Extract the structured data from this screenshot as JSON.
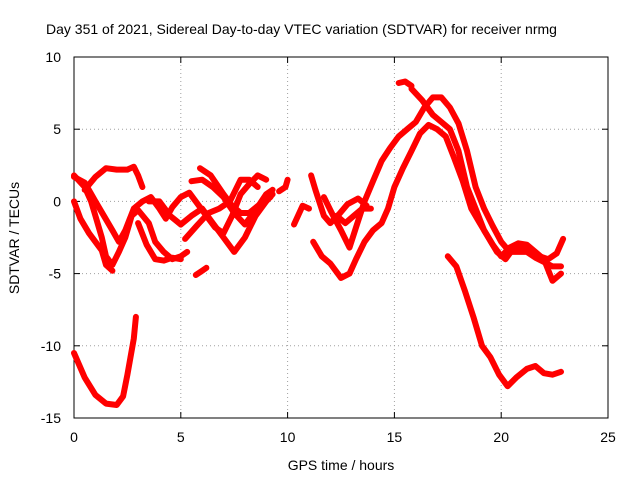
{
  "chart_data": {
    "type": "line",
    "title": "Day 351 of 2021, Sidereal Day-to-day VTEC variation (SDTVAR) for receiver nrmg",
    "xlabel": "GPS time / hours",
    "ylabel": "SDTVAR / TECUs",
    "xlim": [
      0,
      25
    ],
    "ylim": [
      -15,
      10
    ],
    "xticks": [
      0,
      5,
      10,
      15,
      20,
      25
    ],
    "yticks": [
      -15,
      -10,
      -5,
      0,
      5,
      10
    ],
    "xtick_labels": [
      "0",
      "5",
      "10",
      "15",
      "20",
      "25"
    ],
    "ytick_labels": [
      "-15",
      "-10",
      "-5",
      "0",
      "5",
      "10"
    ],
    "grid": true,
    "legend": "none",
    "color": "#ff0000",
    "series": [
      {
        "name": "trace-1",
        "points": [
          [
            0,
            -10.5
          ],
          [
            0.5,
            -12.2
          ],
          [
            1,
            -13.4
          ],
          [
            1.5,
            -14
          ],
          [
            2,
            -14.1
          ],
          [
            2.3,
            -13.5
          ],
          [
            2.5,
            -12
          ],
          [
            2.8,
            -9.5
          ],
          [
            2.9,
            -8
          ]
        ]
      },
      {
        "name": "trace-2",
        "points": [
          [
            0,
            1.8
          ],
          [
            0.5,
            1
          ],
          [
            0.8,
            0
          ],
          [
            1,
            -1
          ],
          [
            1.3,
            -2.5
          ],
          [
            1.5,
            -3.8
          ],
          [
            1.8,
            -4.4
          ],
          [
            2.1,
            -3.5
          ],
          [
            2.4,
            -2.5
          ],
          [
            2.7,
            -1
          ],
          [
            3,
            -0.6
          ],
          [
            3.5,
            -1.5
          ],
          [
            3.8,
            -2.8
          ],
          [
            4.2,
            -3.5
          ],
          [
            4.6,
            -4
          ],
          [
            5,
            -3.8
          ],
          [
            5.3,
            -3.5
          ]
        ]
      },
      {
        "name": "trace-3",
        "points": [
          [
            0.5,
            0.8
          ],
          [
            1,
            1.7
          ],
          [
            1.5,
            2.3
          ],
          [
            2,
            2.2
          ],
          [
            2.5,
            2.2
          ],
          [
            2.8,
            2.4
          ],
          [
            3,
            1.8
          ],
          [
            3.2,
            1
          ]
        ]
      },
      {
        "name": "trace-4",
        "points": [
          [
            0,
            1.7
          ],
          [
            0.5,
            1.3
          ],
          [
            1,
            0
          ],
          [
            1.4,
            -1
          ],
          [
            1.8,
            -2
          ],
          [
            2.1,
            -2.8
          ],
          [
            2.4,
            -2
          ],
          [
            2.8,
            -0.5
          ],
          [
            3.2,
            0
          ],
          [
            3.6,
            0.3
          ],
          [
            4,
            -0.5
          ],
          [
            4.3,
            -1.2
          ],
          [
            4.6,
            -0.4
          ],
          [
            5,
            0.3
          ],
          [
            5.4,
            0.6
          ],
          [
            5.8,
            -0.2
          ],
          [
            6.2,
            -1
          ],
          [
            6.6,
            -1.8
          ],
          [
            7,
            -2.2
          ],
          [
            7.4,
            -1
          ],
          [
            7.8,
            0.5
          ],
          [
            8.2,
            1.2
          ],
          [
            8.6,
            1.8
          ],
          [
            9,
            1.5
          ]
        ]
      },
      {
        "name": "trace-5",
        "points": [
          [
            0,
            0
          ],
          [
            0.3,
            -1.2
          ],
          [
            0.7,
            -2.2
          ],
          [
            1,
            -2.8
          ],
          [
            1.3,
            -3.4
          ],
          [
            1.5,
            -4.4
          ],
          [
            1.8,
            -4.8
          ]
        ]
      },
      {
        "name": "trace-6",
        "points": [
          [
            3,
            -1.5
          ],
          [
            3.4,
            -3
          ],
          [
            3.8,
            -4
          ],
          [
            4.2,
            -4.1
          ],
          [
            4.6,
            -3.9
          ],
          [
            5,
            -4
          ]
        ]
      },
      {
        "name": "trace-7",
        "points": [
          [
            3.5,
            0
          ],
          [
            4,
            0
          ],
          [
            4.5,
            -1
          ],
          [
            5,
            -1.6
          ],
          [
            5.5,
            -1
          ],
          [
            6,
            -0.5
          ],
          [
            6.5,
            -1.5
          ],
          [
            7,
            -2.5
          ],
          [
            7.5,
            -3.5
          ],
          [
            8,
            -2.5
          ],
          [
            8.5,
            -1
          ],
          [
            9,
            0
          ],
          [
            9.3,
            0.5
          ]
        ]
      },
      {
        "name": "trace-8",
        "points": [
          [
            5.2,
            -2.6
          ],
          [
            5.8,
            -1.6
          ],
          [
            6.3,
            -0.8
          ],
          [
            6.8,
            -0.5
          ],
          [
            7.3,
            0
          ],
          [
            7.8,
            1.5
          ],
          [
            8.2,
            1.5
          ],
          [
            8.6,
            1
          ]
        ]
      },
      {
        "name": "trace-9",
        "points": [
          [
            5.5,
            1.4
          ],
          [
            6,
            1.5
          ],
          [
            6.5,
            1
          ],
          [
            7,
            0.3
          ],
          [
            7.5,
            -0.8
          ],
          [
            8,
            -1.6
          ],
          [
            8.5,
            -0.6
          ],
          [
            9,
            0.5
          ],
          [
            9.3,
            0.8
          ]
        ]
      },
      {
        "name": "trace-10",
        "points": [
          [
            5.7,
            -5.1
          ],
          [
            6,
            -4.8
          ],
          [
            6.2,
            -4.6
          ]
        ]
      },
      {
        "name": "trace-11",
        "points": [
          [
            5.9,
            2.3
          ],
          [
            6.4,
            1.8
          ],
          [
            7,
            0.5
          ],
          [
            7.4,
            -0.3
          ],
          [
            7.8,
            -0.8
          ],
          [
            8.2,
            -0.8
          ],
          [
            8.7,
            -0.2
          ],
          [
            9.2,
            0.3
          ]
        ]
      },
      {
        "name": "trace-12",
        "points": [
          [
            9.6,
            0.7
          ],
          [
            9.9,
            1
          ],
          [
            10,
            1.5
          ]
        ]
      },
      {
        "name": "trace-13",
        "points": [
          [
            10.3,
            -1.6
          ],
          [
            10.7,
            -0.3
          ],
          [
            11,
            -0.5
          ]
        ]
      },
      {
        "name": "trace-14",
        "points": [
          [
            11.1,
            1.8
          ],
          [
            11.3,
            0.8
          ],
          [
            11.7,
            -1
          ],
          [
            12,
            -1.5
          ],
          [
            12.4,
            -0.9
          ],
          [
            12.8,
            -0.2
          ],
          [
            13.3,
            0.2
          ],
          [
            13.7,
            -0.3
          ]
        ]
      },
      {
        "name": "trace-15",
        "points": [
          [
            11.2,
            -2.8
          ],
          [
            11.6,
            -3.8
          ],
          [
            12,
            -4.3
          ],
          [
            12.5,
            -5.3
          ],
          [
            12.9,
            -5
          ],
          [
            13.2,
            -4
          ],
          [
            13.6,
            -2.8
          ],
          [
            14,
            -2
          ],
          [
            14.4,
            -1.5
          ],
          [
            14.7,
            -0.5
          ],
          [
            15,
            1
          ],
          [
            15.4,
            2.3
          ],
          [
            15.8,
            3.5
          ],
          [
            16.2,
            4.7
          ],
          [
            16.6,
            5.3
          ],
          [
            17,
            5
          ],
          [
            17.4,
            4.5
          ],
          [
            17.8,
            3
          ],
          [
            18.2,
            1.4
          ],
          [
            18.6,
            -0.5
          ],
          [
            19,
            -1.5
          ],
          [
            19.4,
            -2.5
          ],
          [
            19.8,
            -3.5
          ],
          [
            20.2,
            -4
          ],
          [
            20.6,
            -3.2
          ],
          [
            21,
            -3.2
          ],
          [
            21.4,
            -3.5
          ],
          [
            21.8,
            -3.8
          ],
          [
            22.2,
            -4
          ],
          [
            22.6,
            -3.6
          ],
          [
            22.9,
            -2.6
          ]
        ]
      },
      {
        "name": "trace-16",
        "points": [
          [
            11.7,
            0.3
          ],
          [
            12.1,
            -0.9
          ],
          [
            12.5,
            -2
          ],
          [
            12.9,
            -3.2
          ],
          [
            13.2,
            -1.8
          ],
          [
            13.6,
            0
          ],
          [
            14,
            1.4
          ],
          [
            14.4,
            2.8
          ],
          [
            14.8,
            3.7
          ],
          [
            15.2,
            4.5
          ],
          [
            15.6,
            5
          ],
          [
            16,
            5.5
          ],
          [
            16.4,
            6.5
          ],
          [
            16.8,
            7.2
          ],
          [
            17.2,
            7.2
          ],
          [
            17.6,
            6.5
          ],
          [
            18,
            5.4
          ],
          [
            18.4,
            3.5
          ],
          [
            18.8,
            1
          ],
          [
            19.2,
            -0.5
          ],
          [
            19.6,
            -1.7
          ],
          [
            20,
            -2.8
          ],
          [
            20.4,
            -3.5
          ],
          [
            20.8,
            -3.5
          ],
          [
            21.2,
            -3.5
          ],
          [
            21.6,
            -3.9
          ],
          [
            22,
            -4.2
          ],
          [
            22.4,
            -4.5
          ],
          [
            22.8,
            -4.5
          ]
        ]
      },
      {
        "name": "trace-17",
        "points": [
          [
            12.3,
            -1
          ],
          [
            12.7,
            -1.5
          ],
          [
            13.1,
            -1
          ],
          [
            13.5,
            -0.5
          ],
          [
            13.9,
            -0.5
          ]
        ]
      },
      {
        "name": "trace-18",
        "points": [
          [
            15.2,
            8.2
          ],
          [
            15.5,
            8.3
          ],
          [
            15.8,
            8
          ]
        ]
      },
      {
        "name": "trace-19",
        "points": [
          [
            15.8,
            7.8
          ],
          [
            16.3,
            7
          ],
          [
            16.8,
            6
          ],
          [
            17.2,
            5.5
          ],
          [
            17.6,
            5
          ],
          [
            18,
            3.5
          ],
          [
            18.4,
            1
          ],
          [
            18.8,
            -0.5
          ],
          [
            19.2,
            -2
          ],
          [
            19.6,
            -3
          ],
          [
            20,
            -3.8
          ],
          [
            20.4,
            -3.2
          ],
          [
            20.8,
            -2.9
          ],
          [
            21.2,
            -3
          ],
          [
            21.6,
            -3.5
          ],
          [
            22,
            -4
          ],
          [
            22.4,
            -5.5
          ],
          [
            22.8,
            -5
          ]
        ]
      },
      {
        "name": "trace-20",
        "points": [
          [
            17.5,
            -3.8
          ],
          [
            17.9,
            -4.5
          ],
          [
            18.3,
            -6.2
          ],
          [
            18.7,
            -8
          ],
          [
            19.1,
            -10
          ],
          [
            19.5,
            -10.8
          ],
          [
            19.9,
            -12
          ],
          [
            20.3,
            -12.8
          ],
          [
            20.7,
            -12.2
          ],
          [
            21.2,
            -11.6
          ],
          [
            21.6,
            -11.4
          ],
          [
            22,
            -11.9
          ],
          [
            22.4,
            -12
          ],
          [
            22.8,
            -11.8
          ]
        ]
      }
    ]
  }
}
